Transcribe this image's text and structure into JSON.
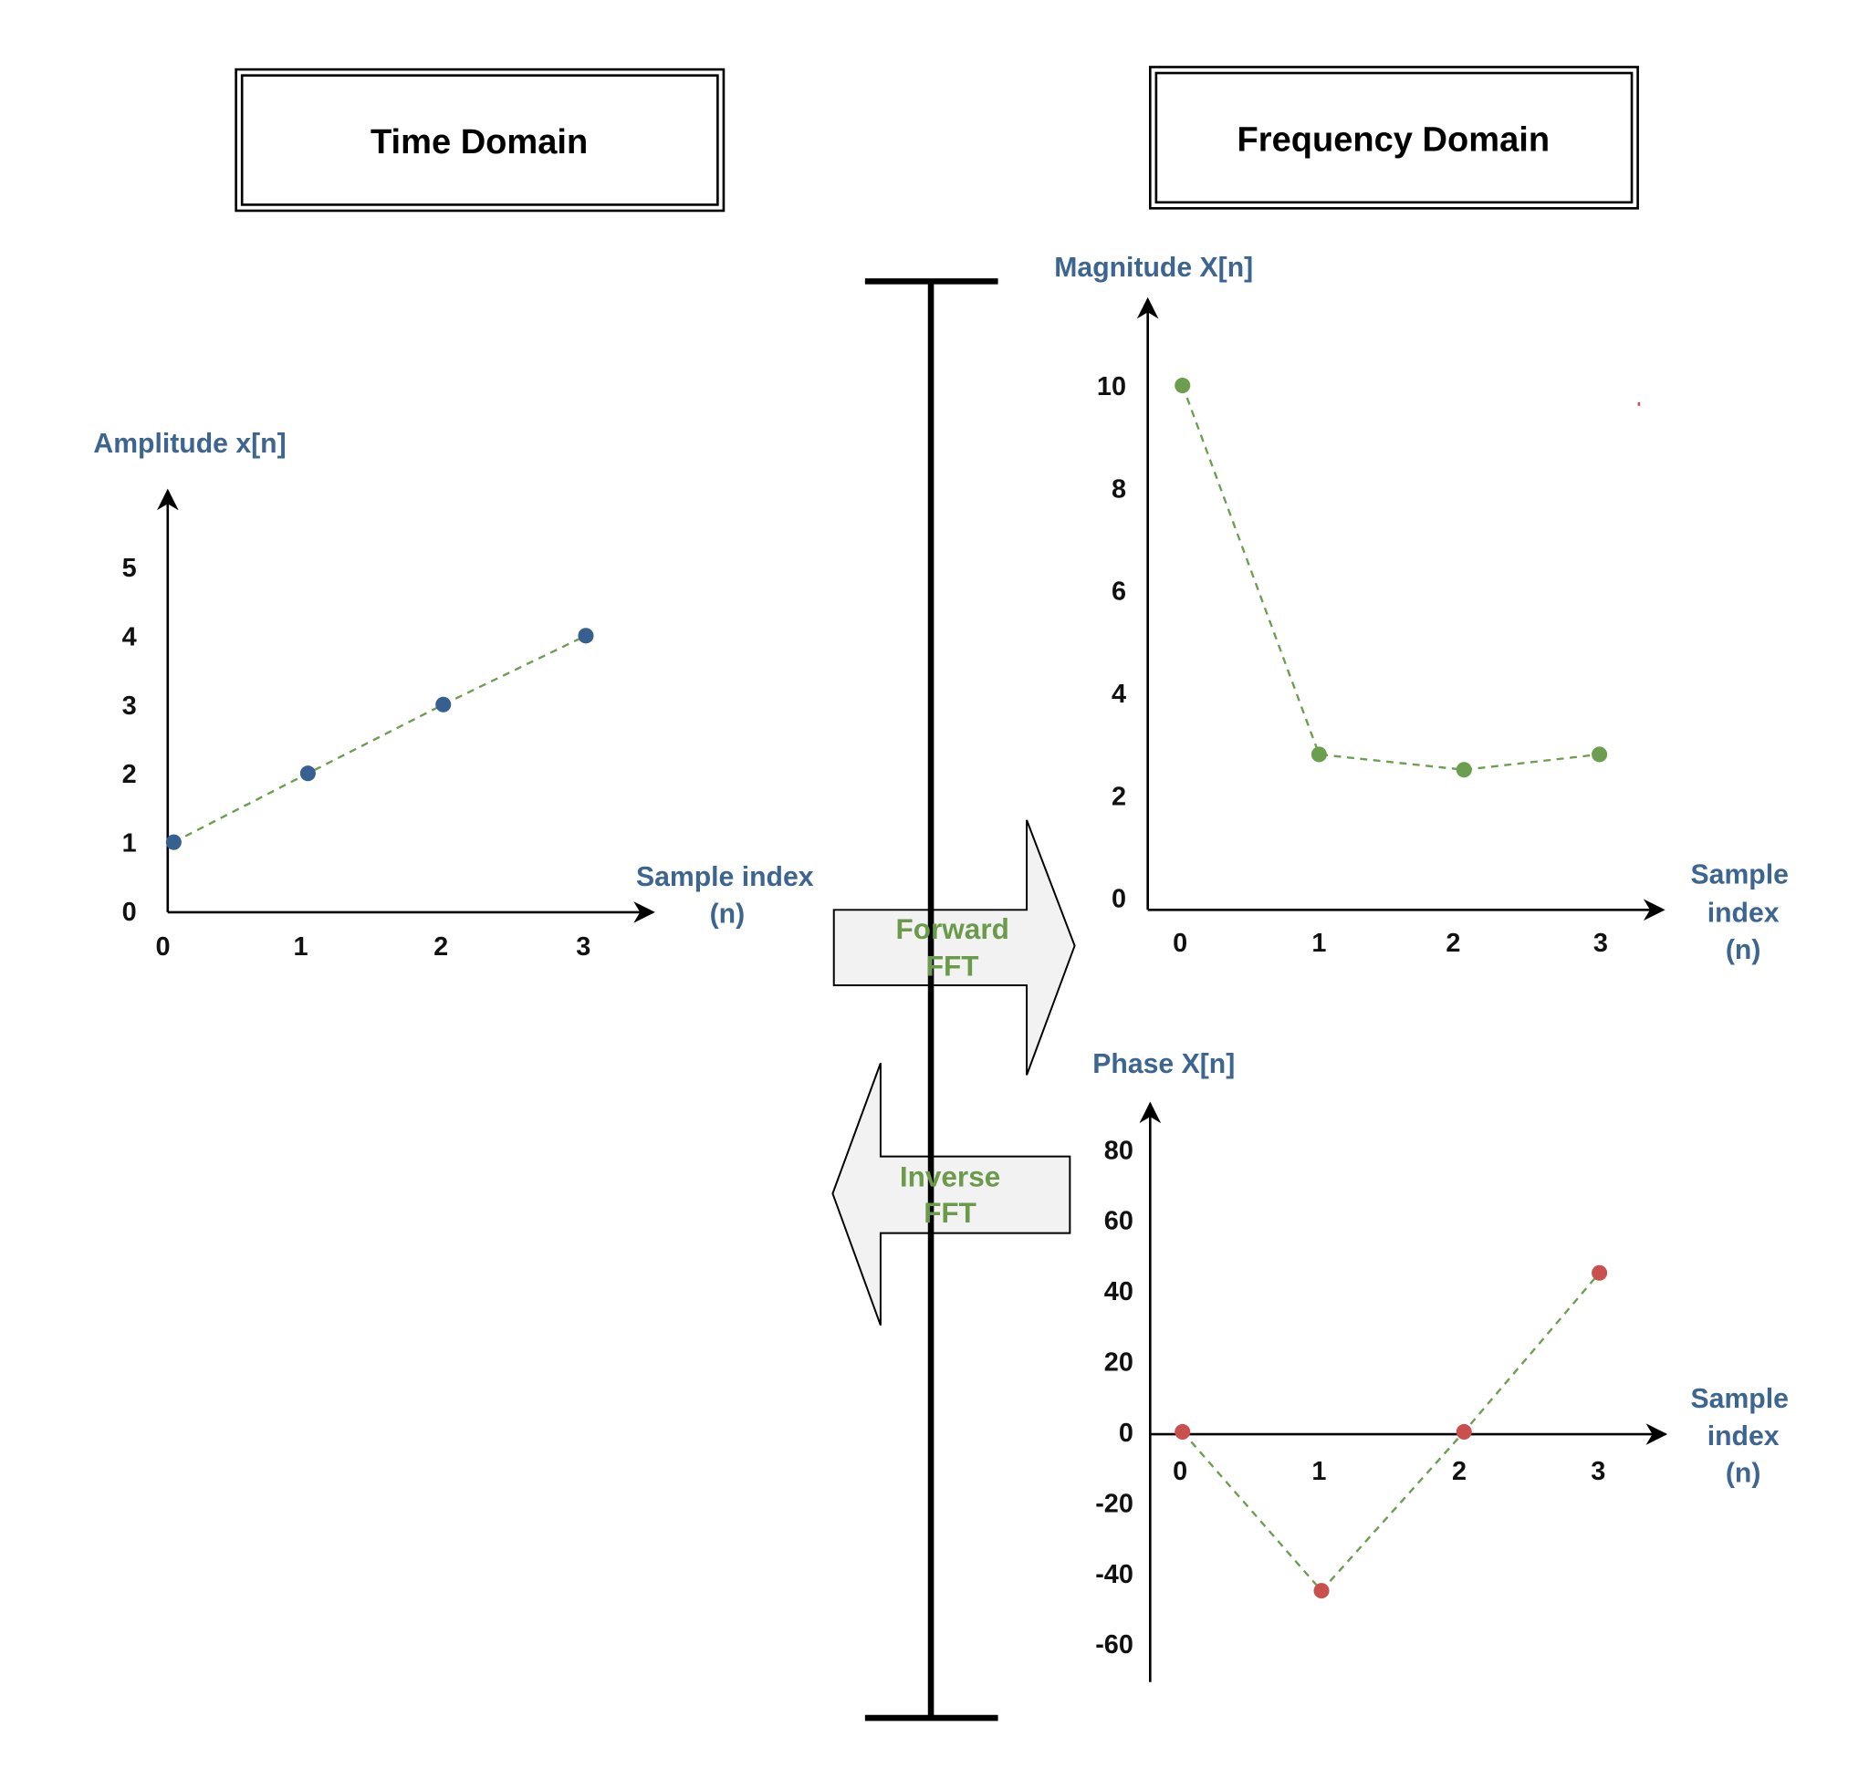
{
  "headers": {
    "time_domain": "Time Domain",
    "frequency_domain": "Frequency Domain"
  },
  "arrows": {
    "forward": {
      "line1": "Forward",
      "line2": "FFT"
    },
    "inverse": {
      "line1": "Inverse",
      "line2": "FFT"
    }
  },
  "colors": {
    "axis_label": "#3d6591",
    "fft_text": "#6a9a4a",
    "arrow_fill": "#f2f2f2",
    "time_points": "#36608f",
    "magnitude_points": "#6b9e4f",
    "phase_points": "#c9504c",
    "connector_line": "#6b9e4f"
  },
  "chart_data": [
    {
      "id": "time",
      "type": "scatter",
      "connector": "dashed",
      "ylabel": "Amplitude x[n]",
      "xlabel_lines": [
        "Sample index",
        "(n)"
      ],
      "x": [
        0,
        1,
        2,
        3
      ],
      "y": [
        1,
        2,
        3,
        4
      ],
      "xticks": [
        "0",
        "1",
        "2",
        "3"
      ],
      "yticks": [
        0,
        1,
        2,
        3,
        4,
        5
      ],
      "ylim": [
        0,
        6
      ]
    },
    {
      "id": "magnitude",
      "type": "scatter",
      "connector": "dashed",
      "ylabel": "Magnitude X[n]",
      "xlabel_lines": [
        "Sample",
        "index",
        "(n)"
      ],
      "x": [
        0,
        1,
        2,
        3
      ],
      "y": [
        10,
        2.8,
        2.5,
        2.8
      ],
      "xticks": [
        "0",
        "1",
        "2",
        "3"
      ],
      "yticks": [
        0,
        2,
        4,
        6,
        8,
        10
      ],
      "ylim": [
        0,
        12
      ]
    },
    {
      "id": "phase",
      "type": "scatter",
      "connector": "dashed",
      "ylabel": "Phase X[n]",
      "xlabel_lines": [
        "Sample",
        "index",
        "(n)"
      ],
      "x": [
        0,
        1,
        2,
        3
      ],
      "y": [
        0,
        -45,
        0,
        45
      ],
      "xticks": [
        "0",
        "1",
        "2",
        "3"
      ],
      "yticks": [
        -60,
        -40,
        -20,
        0,
        20,
        40,
        60,
        80
      ],
      "ylim": [
        -70,
        90
      ]
    }
  ]
}
